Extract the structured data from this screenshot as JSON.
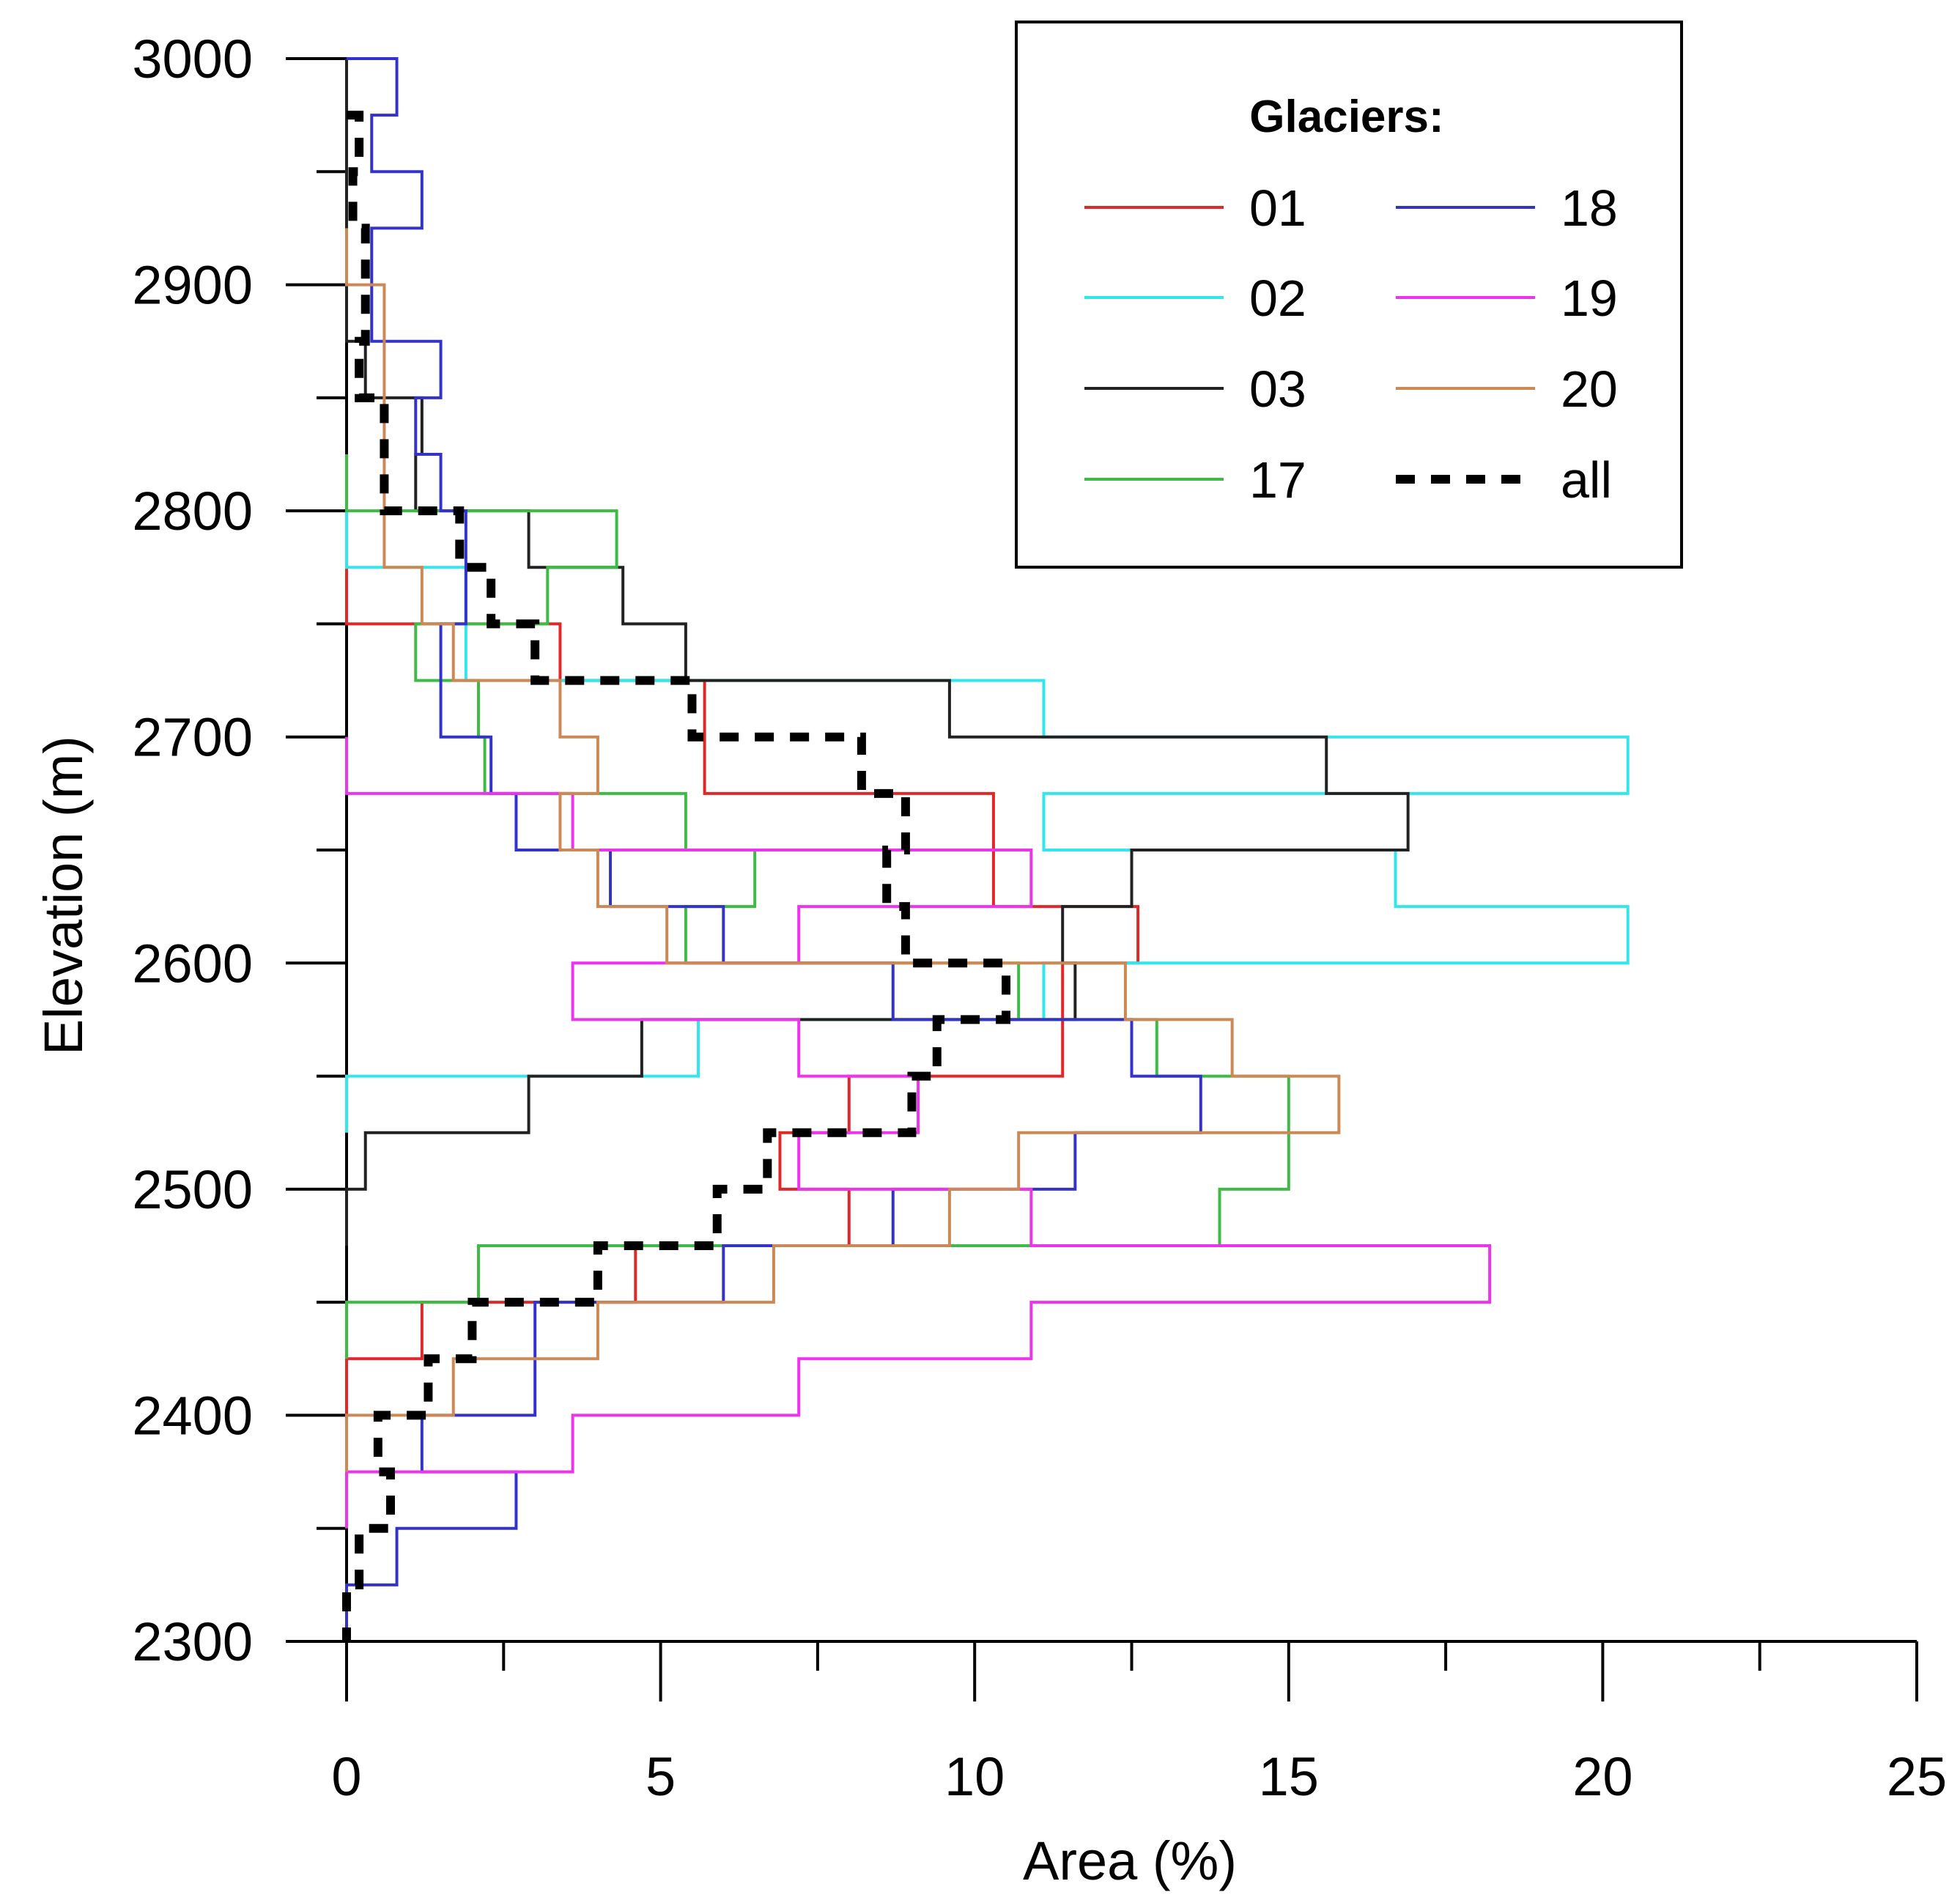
{
  "chart_data": {
    "type": "line",
    "subtype": "step-profile",
    "title": "",
    "xlabel": "Area (%)",
    "ylabel": "Elevation (m)",
    "xlim": [
      0,
      25
    ],
    "ylim": [
      2300,
      3000
    ],
    "xticks": [
      0,
      5,
      10,
      15,
      20,
      25
    ],
    "xtick_labels": [
      "0",
      "5",
      "10",
      "15",
      "20",
      "25"
    ],
    "yticks": [
      2300,
      2400,
      2500,
      2600,
      2700,
      2800,
      2900,
      3000
    ],
    "ytick_labels": [
      "2300",
      "2400",
      "2500",
      "2600",
      "2700",
      "2800",
      "2900",
      "3000"
    ],
    "bin_width_m": 25,
    "legend": {
      "title": "Glaciers:",
      "placement": "top-right"
    },
    "series": [
      {
        "name": "01",
        "color": "#e0282a",
        "dash": false,
        "points": [
          [
            2775,
            0
          ],
          [
            2750,
            3.4
          ],
          [
            2725,
            5.7
          ],
          [
            2700,
            5.7
          ],
          [
            2675,
            10.3
          ],
          [
            2650,
            10.3
          ],
          [
            2625,
            12.6
          ],
          [
            2600,
            11.4
          ],
          [
            2575,
            11.4
          ],
          [
            2550,
            8.0
          ],
          [
            2525,
            6.9
          ],
          [
            2500,
            8.0
          ],
          [
            2475,
            4.6
          ],
          [
            2450,
            1.2
          ],
          [
            2425,
            0
          ]
        ]
      },
      {
        "name": "02",
        "color": "#33e6ec",
        "dash": false,
        "points": [
          [
            2800,
            0
          ],
          [
            2775,
            1.9
          ],
          [
            2750,
            1.9
          ],
          [
            2725,
            11.1
          ],
          [
            2700,
            20.4
          ],
          [
            2675,
            11.1
          ],
          [
            2650,
            16.7
          ],
          [
            2625,
            20.4
          ],
          [
            2600,
            11.1
          ],
          [
            2575,
            5.6
          ],
          [
            2550,
            0
          ]
        ]
      },
      {
        "name": "03",
        "color": "#222222",
        "dash": false,
        "points": [
          [
            3000,
            0
          ],
          [
            2975,
            0
          ],
          [
            2950,
            0
          ],
          [
            2925,
            0
          ],
          [
            2900,
            0
          ],
          [
            2875,
            0.3
          ],
          [
            2850,
            1.2
          ],
          [
            2825,
            1.1
          ],
          [
            2800,
            2.9
          ],
          [
            2775,
            4.4
          ],
          [
            2750,
            5.4
          ],
          [
            2725,
            9.6
          ],
          [
            2700,
            15.6
          ],
          [
            2675,
            16.9
          ],
          [
            2650,
            12.5
          ],
          [
            2625,
            11.4
          ],
          [
            2600,
            11.6
          ],
          [
            2575,
            4.7
          ],
          [
            2550,
            2.9
          ],
          [
            2525,
            0.3
          ],
          [
            2500,
            0
          ]
        ]
      },
      {
        "name": "17",
        "color": "#3dbb45",
        "dash": false,
        "points": [
          [
            2825,
            0
          ],
          [
            2800,
            4.3
          ],
          [
            2775,
            3.2
          ],
          [
            2750,
            1.1
          ],
          [
            2725,
            2.1
          ],
          [
            2700,
            2.2
          ],
          [
            2675,
            5.4
          ],
          [
            2650,
            6.5
          ],
          [
            2625,
            5.4
          ],
          [
            2600,
            10.7
          ],
          [
            2575,
            12.9
          ],
          [
            2550,
            15.0
          ],
          [
            2525,
            15.0
          ],
          [
            2500,
            13.9
          ],
          [
            2475,
            2.1
          ],
          [
            2450,
            0
          ]
        ]
      },
      {
        "name": "18",
        "color": "#3333cc",
        "dash": false,
        "points": [
          [
            3000,
            0.8
          ],
          [
            2975,
            0.4
          ],
          [
            2950,
            1.2
          ],
          [
            2925,
            0.4
          ],
          [
            2900,
            0.4
          ],
          [
            2875,
            1.5
          ],
          [
            2850,
            1.1
          ],
          [
            2825,
            1.5
          ],
          [
            2800,
            1.9
          ],
          [
            2775,
            1.9
          ],
          [
            2750,
            1.5
          ],
          [
            2725,
            1.5
          ],
          [
            2700,
            2.3
          ],
          [
            2675,
            2.7
          ],
          [
            2650,
            4.2
          ],
          [
            2625,
            6.0
          ],
          [
            2600,
            8.7
          ],
          [
            2575,
            12.5
          ],
          [
            2550,
            13.6
          ],
          [
            2525,
            11.6
          ],
          [
            2500,
            8.7
          ],
          [
            2475,
            6.0
          ],
          [
            2450,
            3.0
          ],
          [
            2425,
            3.0
          ],
          [
            2400,
            1.2
          ],
          [
            2375,
            2.7
          ],
          [
            2350,
            0.8
          ],
          [
            2325,
            0
          ]
        ]
      },
      {
        "name": "19",
        "color": "#ee33ee",
        "dash": false,
        "points": [
          [
            2700,
            0
          ],
          [
            2675,
            3.6
          ],
          [
            2650,
            10.9
          ],
          [
            2625,
            7.2
          ],
          [
            2600,
            3.6
          ],
          [
            2575,
            7.2
          ],
          [
            2550,
            9.1
          ],
          [
            2525,
            7.2
          ],
          [
            2500,
            10.9
          ],
          [
            2475,
            18.2
          ],
          [
            2450,
            10.9
          ],
          [
            2425,
            7.2
          ],
          [
            2400,
            3.6
          ],
          [
            2375,
            0
          ]
        ]
      },
      {
        "name": "20",
        "color": "#cc8855",
        "dash": false,
        "points": [
          [
            2925,
            0
          ],
          [
            2900,
            0.6
          ],
          [
            2875,
            0.6
          ],
          [
            2850,
            0.6
          ],
          [
            2825,
            0.6
          ],
          [
            2800,
            0.6
          ],
          [
            2775,
            1.2
          ],
          [
            2750,
            1.7
          ],
          [
            2725,
            3.4
          ],
          [
            2700,
            4.0
          ],
          [
            2675,
            3.4
          ],
          [
            2650,
            4.0
          ],
          [
            2625,
            5.1
          ],
          [
            2600,
            12.4
          ],
          [
            2575,
            14.1
          ],
          [
            2550,
            15.8
          ],
          [
            2525,
            10.7
          ],
          [
            2500,
            9.6
          ],
          [
            2475,
            6.8
          ],
          [
            2450,
            4.0
          ],
          [
            2425,
            1.7
          ],
          [
            2400,
            0
          ]
        ]
      },
      {
        "name": "all",
        "color": "#000000",
        "dash": true,
        "points": [
          [
            2975,
            0.2
          ],
          [
            2950,
            0.1
          ],
          [
            2925,
            0.3
          ],
          [
            2900,
            0.3
          ],
          [
            2875,
            0.2
          ],
          [
            2850,
            0.6
          ],
          [
            2825,
            0.6
          ],
          [
            2800,
            1.8
          ],
          [
            2775,
            2.3
          ],
          [
            2750,
            3.0
          ],
          [
            2725,
            5.5
          ],
          [
            2700,
            8.2
          ],
          [
            2675,
            8.9
          ],
          [
            2650,
            8.6
          ],
          [
            2625,
            8.9
          ],
          [
            2600,
            10.5
          ],
          [
            2575,
            9.4
          ],
          [
            2550,
            9.0
          ],
          [
            2525,
            6.7
          ],
          [
            2500,
            5.9
          ],
          [
            2475,
            4.0
          ],
          [
            2450,
            2.0
          ],
          [
            2425,
            1.3
          ],
          [
            2400,
            0.5
          ],
          [
            2375,
            0.7
          ],
          [
            2350,
            0.2
          ],
          [
            2325,
            0
          ]
        ]
      }
    ]
  }
}
